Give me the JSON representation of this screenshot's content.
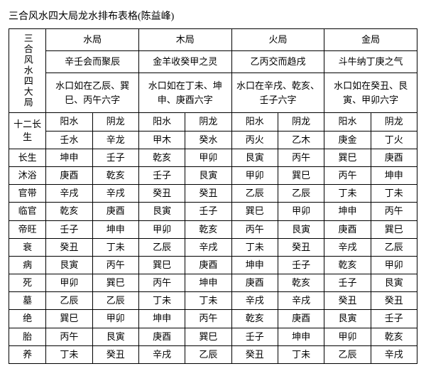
{
  "title": "三合风水四大局龙水排布表格(陈益峰)",
  "side_label": "三合风水四大局",
  "bureaus": [
    "水局",
    "木局",
    "火局",
    "金局"
  ],
  "mottos": [
    "辛壬会而聚辰",
    "金羊收癸甲之灵",
    "乙丙交而趋戌",
    "斗牛纳丁庚之气"
  ],
  "exits": [
    "水口如在乙辰、巽巳、丙午六字",
    "水口如在丁未、坤申、庚酉六字",
    "水口在辛戌、乾亥、壬子六字",
    "水口如在癸丑、艮寅、甲卯六字"
  ],
  "sub_headers": [
    "阳水",
    "阴龙",
    "阳水",
    "阴龙",
    "阳水",
    "阴龙",
    "阳水",
    "阴龙"
  ],
  "stage_header": "十二长生",
  "stages": [
    "长生",
    "沐浴",
    "官带",
    "临官",
    "帝旺",
    "衰",
    "病",
    "死",
    "墓",
    "绝",
    "胎",
    "养"
  ],
  "r0": [
    "壬水",
    "辛龙",
    "甲木",
    "癸水",
    "丙火",
    "乙木",
    "庚金",
    "丁火"
  ],
  "r1": [
    "坤申",
    "壬子",
    "乾亥",
    "甲卯",
    "艮寅",
    "丙午",
    "巽巳",
    "庚酉"
  ],
  "r2": [
    "庚酉",
    "乾亥",
    "壬子",
    "艮寅",
    "甲卯",
    "巽巳",
    "丙午",
    "坤申"
  ],
  "r3": [
    "辛戌",
    "辛戌",
    "癸丑",
    "癸丑",
    "乙辰",
    "乙辰",
    "丁未",
    "丁未"
  ],
  "r4": [
    "乾亥",
    "庚酉",
    "艮寅",
    "壬子",
    "巽巳",
    "甲卯",
    "坤申",
    "丙午"
  ],
  "r5": [
    "壬子",
    "坤申",
    "甲卯",
    "乾亥",
    "丙午",
    "艮寅",
    "庚酉",
    "巽巳"
  ],
  "r6": [
    "癸丑",
    "丁未",
    "乙辰",
    "辛戌",
    "丁未",
    "癸丑",
    "辛戌",
    "乙辰"
  ],
  "r7": [
    "艮寅",
    "丙午",
    "巽巳",
    "庚酉",
    "坤申",
    "壬子",
    "乾亥",
    "甲卯"
  ],
  "r8": [
    "甲卯",
    "巽巳",
    "丙午",
    "坤申",
    "庚酉",
    "乾亥",
    "壬子",
    "艮寅"
  ],
  "r9": [
    "乙辰",
    "乙辰",
    "丁未",
    "丁未",
    "辛戌",
    "辛戌",
    "癸丑",
    "癸丑"
  ],
  "r10": [
    "巽巳",
    "甲卯",
    "坤申",
    "丙午",
    "乾亥",
    "庚酉",
    "艮寅",
    "壬子"
  ],
  "r11": [
    "丙午",
    "艮寅",
    "庚酉",
    "巽巳",
    "壬子",
    "坤申",
    "甲卯",
    "乾亥"
  ],
  "r12": [
    "丁未",
    "癸丑",
    "辛戌",
    "乙辰",
    "癸丑",
    "丁未",
    "乙辰",
    "辛戌"
  ]
}
